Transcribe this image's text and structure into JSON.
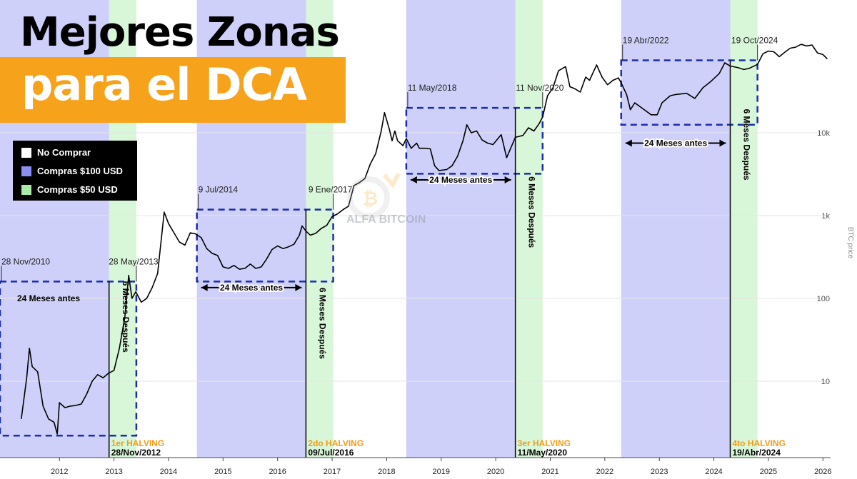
{
  "title": {
    "line1": "Mejores Zonas",
    "line2": "para el DCA"
  },
  "legend": [
    {
      "label": "No Comprar",
      "color": "#ffffff"
    },
    {
      "label": "Compras $100 USD",
      "color": "#8a8ff0"
    },
    {
      "label": "Compras $50 USD",
      "color": "#a8eaa8"
    }
  ],
  "watermark": "ALFA BITCOIN",
  "chart_data": {
    "type": "line",
    "scale": "log",
    "ylabel": "BTC price",
    "y_ticks": [
      {
        "value": 10,
        "label": "10"
      },
      {
        "value": 100,
        "label": "100"
      },
      {
        "value": 1000,
        "label": "1k"
      },
      {
        "value": 10000,
        "label": "10k"
      }
    ],
    "x_ticks": [
      "2012",
      "2013",
      "2014",
      "2015",
      "2016",
      "2017",
      "2018",
      "2019",
      "2020",
      "2021",
      "2022",
      "2023",
      "2024",
      "2025",
      "2026"
    ],
    "colors": {
      "line": "#000000",
      "buy100": "#8a8ff0",
      "buy50": "#a8eaa8",
      "dashed": "#1a2db0",
      "halving": "#f39c12"
    },
    "series": [
      {
        "points": [
          [
            2011.3,
            3.5
          ],
          [
            2011.4,
            11
          ],
          [
            2011.45,
            25
          ],
          [
            2011.5,
            15
          ],
          [
            2011.6,
            13
          ],
          [
            2011.7,
            5
          ],
          [
            2011.8,
            3.5
          ],
          [
            2011.9,
            3.2
          ],
          [
            2011.96,
            2.3
          ],
          [
            2012.0,
            5.5
          ],
          [
            2012.1,
            4.8
          ],
          [
            2012.2,
            5
          ],
          [
            2012.3,
            5.1
          ],
          [
            2012.4,
            5.3
          ],
          [
            2012.5,
            7
          ],
          [
            2012.6,
            10
          ],
          [
            2012.7,
            12
          ],
          [
            2012.8,
            11
          ],
          [
            2012.9,
            12.5
          ],
          [
            2013.0,
            13.5
          ],
          [
            2013.1,
            25
          ],
          [
            2013.2,
            60
          ],
          [
            2013.27,
            190
          ],
          [
            2013.33,
            100
          ],
          [
            2013.4,
            120
          ],
          [
            2013.5,
            90
          ],
          [
            2013.6,
            100
          ],
          [
            2013.7,
            135
          ],
          [
            2013.8,
            200
          ],
          [
            2013.92,
            1100
          ],
          [
            2014.0,
            800
          ],
          [
            2014.1,
            620
          ],
          [
            2014.2,
            480
          ],
          [
            2014.3,
            440
          ],
          [
            2014.4,
            620
          ],
          [
            2014.5,
            600
          ],
          [
            2014.6,
            540
          ],
          [
            2014.7,
            400
          ],
          [
            2014.8,
            350
          ],
          [
            2014.9,
            330
          ],
          [
            2015.0,
            240
          ],
          [
            2015.1,
            230
          ],
          [
            2015.2,
            250
          ],
          [
            2015.3,
            225
          ],
          [
            2015.4,
            230
          ],
          [
            2015.5,
            260
          ],
          [
            2015.6,
            230
          ],
          [
            2015.7,
            240
          ],
          [
            2015.8,
            300
          ],
          [
            2015.9,
            390
          ],
          [
            2016.0,
            430
          ],
          [
            2016.1,
            400
          ],
          [
            2016.2,
            420
          ],
          [
            2016.3,
            450
          ],
          [
            2016.4,
            580
          ],
          [
            2016.45,
            750
          ],
          [
            2016.52,
            650
          ],
          [
            2016.6,
            580
          ],
          [
            2016.7,
            610
          ],
          [
            2016.8,
            700
          ],
          [
            2016.9,
            760
          ],
          [
            2017.0,
            970
          ],
          [
            2017.1,
            1050
          ],
          [
            2017.2,
            1180
          ],
          [
            2017.3,
            1300
          ],
          [
            2017.4,
            2300
          ],
          [
            2017.5,
            2500
          ],
          [
            2017.6,
            2800
          ],
          [
            2017.7,
            4200
          ],
          [
            2017.8,
            5600
          ],
          [
            2017.9,
            10500
          ],
          [
            2017.96,
            17500
          ],
          [
            2018.05,
            11000
          ],
          [
            2018.1,
            8000
          ],
          [
            2018.15,
            10500
          ],
          [
            2018.2,
            8000
          ],
          [
            2018.3,
            7000
          ],
          [
            2018.36,
            8500
          ],
          [
            2018.45,
            6500
          ],
          [
            2018.55,
            7500
          ],
          [
            2018.6,
            6500
          ],
          [
            2018.7,
            6500
          ],
          [
            2018.8,
            6400
          ],
          [
            2018.88,
            4000
          ],
          [
            2018.96,
            3500
          ],
          [
            2019.1,
            3600
          ],
          [
            2019.2,
            4000
          ],
          [
            2019.3,
            5200
          ],
          [
            2019.4,
            8000
          ],
          [
            2019.47,
            12500
          ],
          [
            2019.55,
            10000
          ],
          [
            2019.65,
            10500
          ],
          [
            2019.75,
            8200
          ],
          [
            2019.85,
            7500
          ],
          [
            2019.95,
            7200
          ],
          [
            2020.1,
            9500
          ],
          [
            2020.2,
            5000
          ],
          [
            2020.36,
            8800
          ],
          [
            2020.5,
            9300
          ],
          [
            2020.6,
            11500
          ],
          [
            2020.7,
            10500
          ],
          [
            2020.8,
            13000
          ],
          [
            2020.86,
            15500
          ],
          [
            2020.95,
            28000
          ],
          [
            2021.05,
            35000
          ],
          [
            2021.15,
            56000
          ],
          [
            2021.28,
            63000
          ],
          [
            2021.36,
            36000
          ],
          [
            2021.45,
            34000
          ],
          [
            2021.55,
            31000
          ],
          [
            2021.65,
            47000
          ],
          [
            2021.72,
            43000
          ],
          [
            2021.85,
            66000
          ],
          [
            2021.95,
            47000
          ],
          [
            2022.05,
            38000
          ],
          [
            2022.15,
            43000
          ],
          [
            2022.25,
            46000
          ],
          [
            2022.3,
            40000
          ],
          [
            2022.4,
            29000
          ],
          [
            2022.47,
            19000
          ],
          [
            2022.55,
            23000
          ],
          [
            2022.7,
            19500
          ],
          [
            2022.85,
            16500
          ],
          [
            2022.96,
            16500
          ],
          [
            2023.05,
            23000
          ],
          [
            2023.2,
            28000
          ],
          [
            2023.3,
            29000
          ],
          [
            2023.5,
            30000
          ],
          [
            2023.65,
            26000
          ],
          [
            2023.8,
            35000
          ],
          [
            2023.95,
            42000
          ],
          [
            2024.1,
            52000
          ],
          [
            2024.2,
            70000
          ],
          [
            2024.3,
            64000
          ],
          [
            2024.45,
            61000
          ],
          [
            2024.55,
            58000
          ],
          [
            2024.65,
            60000
          ],
          [
            2024.8,
            67000
          ],
          [
            2024.9,
            90000
          ],
          [
            2025.0,
            97000
          ],
          [
            2025.1,
            95000
          ],
          [
            2025.2,
            83000
          ],
          [
            2025.3,
            94000
          ],
          [
            2025.4,
            105000
          ],
          [
            2025.5,
            108000
          ],
          [
            2025.6,
            117000
          ],
          [
            2025.7,
            112000
          ],
          [
            2025.8,
            115000
          ],
          [
            2025.9,
            92000
          ],
          [
            2026.0,
            88000
          ],
          [
            2026.08,
            78000
          ]
        ]
      }
    ],
    "zones": [
      {
        "start": 2010.91,
        "end": 2012.91,
        "type": "buy100"
      },
      {
        "start": 2012.91,
        "end": 2013.41,
        "type": "buy50"
      },
      {
        "start": 2014.52,
        "end": 2016.52,
        "type": "buy100"
      },
      {
        "start": 2016.52,
        "end": 2017.02,
        "type": "buy50"
      },
      {
        "start": 2018.36,
        "end": 2020.36,
        "type": "buy100"
      },
      {
        "start": 2020.36,
        "end": 2020.86,
        "type": "buy50"
      },
      {
        "start": 2022.3,
        "end": 2024.3,
        "type": "buy100"
      },
      {
        "start": 2024.3,
        "end": 2024.8,
        "type": "buy50"
      }
    ],
    "boxes": [
      {
        "start": 2010.91,
        "end": 2013.41,
        "low": 2.2,
        "high": 160,
        "left_label": "28 Nov/2010",
        "right_label": "28 May/2013"
      },
      {
        "start": 2014.52,
        "end": 2017.02,
        "low": 160,
        "high": 1180,
        "left_label": "9 Jul/2014",
        "right_label": "9 Ene/2017"
      },
      {
        "start": 2018.36,
        "end": 2020.86,
        "low": 3200,
        "high": 20000,
        "left_label": "11 May/2018",
        "right_label": "11 Nov/2020"
      },
      {
        "start": 2022.3,
        "end": 2024.8,
        "low": 12500,
        "high": 75000,
        "left_label": "19 Abr/2022",
        "right_label": "19 Oct/2024"
      }
    ],
    "halvings": [
      {
        "x": 2012.91,
        "label": "1er HALVING",
        "date": "28/Nov/2012"
      },
      {
        "x": 2016.52,
        "label": "2do HALVING",
        "date": "09/Jul/2016"
      },
      {
        "x": 2020.36,
        "label": "3er HALVING",
        "date": "11/May/2020"
      },
      {
        "x": 2024.3,
        "label": "4to HALVING",
        "date": "19/Abr/2024"
      }
    ],
    "before_labels": [
      {
        "text": "24 Meses antes",
        "from": 2010.91,
        "to": 2012.91,
        "y": 100,
        "arrow": false
      },
      {
        "text": "24 Meses antes",
        "from": 2014.52,
        "to": 2016.52,
        "y": 135,
        "arrow": true
      },
      {
        "text": "24 Meses antes",
        "from": 2018.36,
        "to": 2020.36,
        "y": 2700,
        "arrow": true
      },
      {
        "text": "24 Meses antes",
        "from": 2022.3,
        "to": 2024.3,
        "y": 7500,
        "arrow": true
      }
    ],
    "after_labels": [
      {
        "text": "6 Meses Después",
        "x": 2013.16,
        "y": 60
      },
      {
        "text": "6 Meses Después",
        "x": 2016.77,
        "y": 50
      },
      {
        "text": "6 Meses Después",
        "x": 2020.61,
        "y": 1100
      },
      {
        "text": "6 Meses Después",
        "x": 2024.55,
        "y": 7200
      }
    ]
  }
}
